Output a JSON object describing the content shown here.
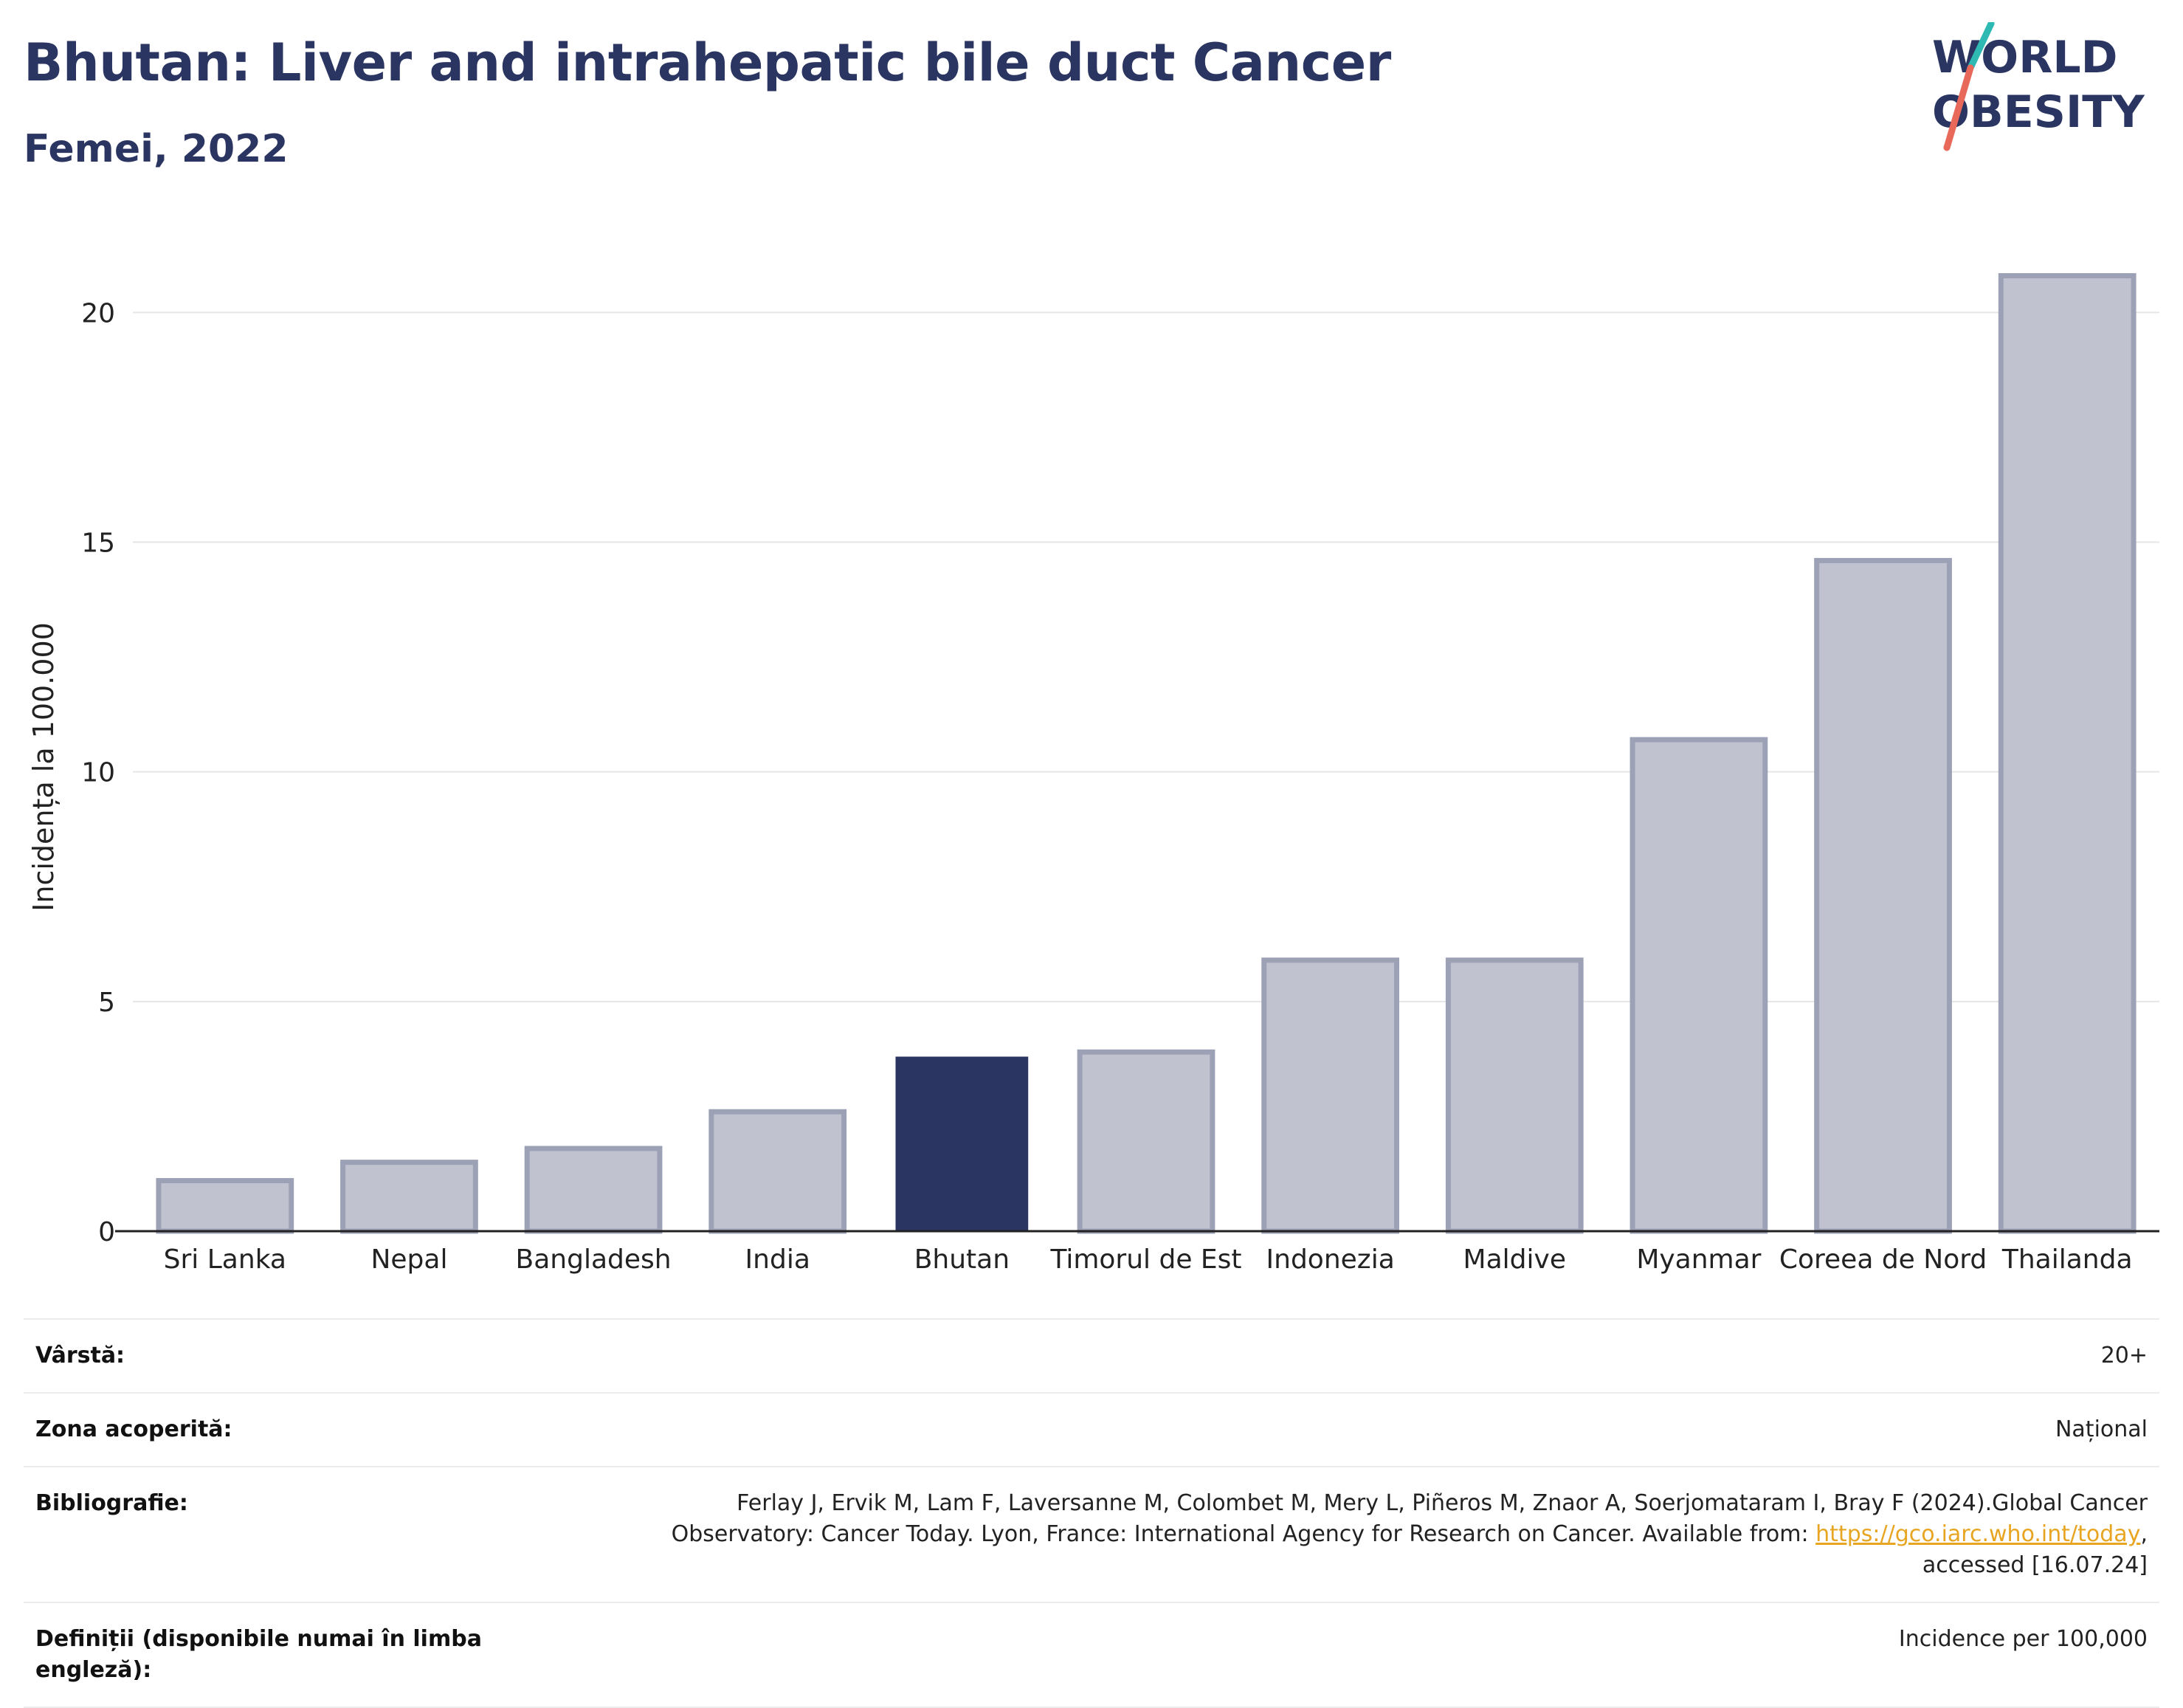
{
  "header": {
    "title": "Bhutan: Liver and intrahepatic bile duct Cancer",
    "subtitle": "Femei, 2022"
  },
  "logo": {
    "line1": "WORLD",
    "line2": "OBESITY",
    "slash_teal": "#2fb9b3",
    "slash_red": "#e8685a",
    "text_color": "#2b3561"
  },
  "colors": {
    "highlight_bar": "#2b3561",
    "other_bar_fill": "#c0c3cf",
    "other_bar_stroke": "#9ca1b6",
    "link": "#e8a521"
  },
  "chart_data": {
    "type": "bar",
    "categories": [
      "Sri Lanka",
      "Nepal",
      "Bangladesh",
      "India",
      "Bhutan",
      "Timorul de Est",
      "Indonezia",
      "Maldive",
      "Myanmar",
      "Coreea de Nord",
      "Thailanda"
    ],
    "values": [
      1.1,
      1.5,
      1.8,
      2.6,
      3.8,
      3.9,
      5.9,
      5.9,
      10.7,
      14.6,
      20.8
    ],
    "highlight": "Bhutan",
    "ylabel": "Incidența la 100.000",
    "ylim": [
      0,
      21.5
    ],
    "yticks": [
      0,
      5,
      10,
      15,
      20
    ],
    "grid": true
  },
  "meta": {
    "age_label": "Vârstă:",
    "age_value": "20+",
    "coverage_label": "Zona acoperită:",
    "coverage_value": "Național",
    "bibliography_label": "Bibliografie:",
    "bibliography_line1": "Ferlay J, Ervik M, Lam F, Laversanne M, Colombet M, Mery L, Piñeros M, Znaor A, Soerjomataram I, Bray F (2024).Global Cancer",
    "bibliography_line2_prefix": "Observatory: Cancer Today. Lyon, France: International Agency for Research on Cancer. Available from: ",
    "bibliography_link": "https://gco.iarc.who.int/today",
    "bibliography_line2_suffix": ",",
    "bibliography_line3": "accessed [16.07.24]",
    "definitions_label": "Definiții (disponibile numai în limba engleză):",
    "definitions_value": "Incidence per 100,000"
  }
}
